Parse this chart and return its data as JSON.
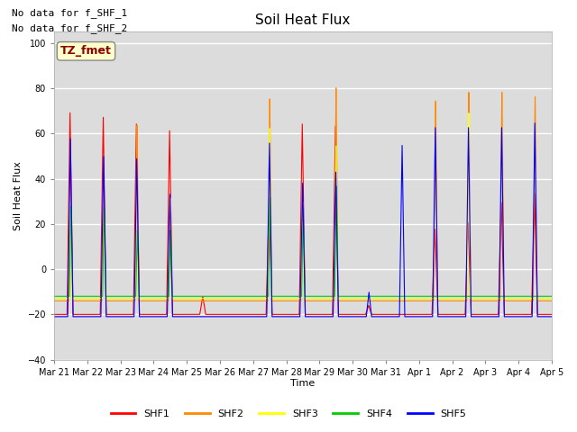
{
  "title": "Soil Heat Flux",
  "ylabel": "Soil Heat Flux",
  "xlabel": "Time",
  "ylim": [
    -40,
    105
  ],
  "yticks": [
    -40,
    -20,
    0,
    20,
    40,
    60,
    80,
    100
  ],
  "plot_bg_color": "#dcdcdc",
  "text_annotations": [
    "No data for f_SHF_1",
    "No data for f_SHF_2"
  ],
  "box_label": "TZ_fmet",
  "series_colors": {
    "SHF1": "#ff0000",
    "SHF2": "#ff8800",
    "SHF3": "#ffff00",
    "SHF4": "#00cc00",
    "SHF5": "#0000ff"
  },
  "x_tick_labels": [
    "Mar 21",
    "Mar 22",
    "Mar 23",
    "Mar 24",
    "Mar 25",
    "Mar 26",
    "Mar 27",
    "Mar 28",
    "Mar 29",
    "Mar 30",
    "Mar 31",
    "Apr 1",
    "Apr 2",
    "Apr 3",
    "Apr 4",
    "Apr 5"
  ],
  "n_days": 15,
  "points_per_day": 288,
  "night_val": -20,
  "figsize": [
    6.4,
    4.8
  ],
  "dpi": 100
}
